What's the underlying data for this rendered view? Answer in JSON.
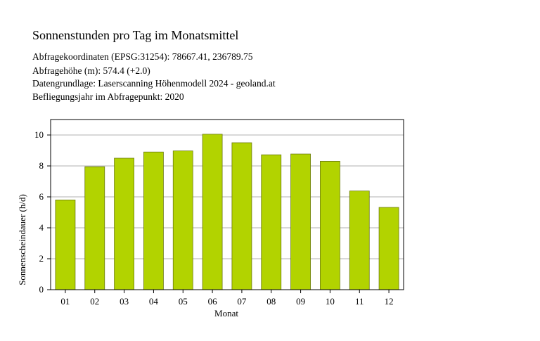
{
  "header": {
    "title": "Sonnenstunden pro Tag im Monatsmittel",
    "lines": [
      "Abfragekoordinaten (EPSG:31254): 78667.41, 236789.75",
      "Abfragehöhe (m): 574.4 (+2.0)",
      "Datengrundlage: Laserscanning Höhenmodell 2024 - geoland.at",
      "Befliegungsjahr im Abfragepunkt: 2020"
    ]
  },
  "chart_data": {
    "type": "bar",
    "categories": [
      "01",
      "02",
      "03",
      "04",
      "05",
      "06",
      "07",
      "08",
      "09",
      "10",
      "11",
      "12"
    ],
    "values": [
      5.8,
      7.95,
      8.5,
      8.9,
      8.97,
      10.05,
      9.5,
      8.72,
      8.77,
      8.3,
      6.38,
      5.32
    ],
    "xlabel": "Monat",
    "ylabel": "Sonnenscheindauer (h/d)",
    "ylim": [
      0,
      11
    ],
    "yticks": [
      0,
      2,
      4,
      6,
      8,
      10
    ],
    "grid": true,
    "legend": "none",
    "colors": {
      "bar": "#b2d300",
      "bar_stroke": "#6b7a10",
      "grid": "#b0b0b0",
      "axis": "#000000"
    }
  }
}
